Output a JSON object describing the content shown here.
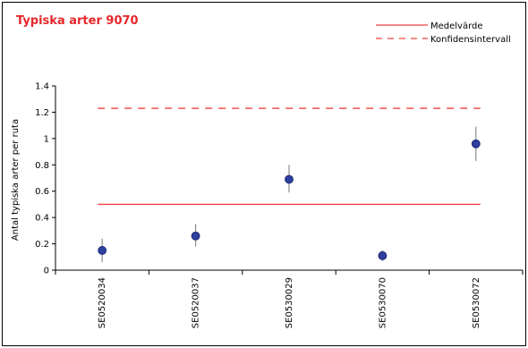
{
  "chart_data": {
    "type": "scatter",
    "title": "Typiska arter 9070",
    "xlabel": "",
    "ylabel": "Antal typiska arter per ruta",
    "ylim": [
      0,
      1.4
    ],
    "yticks": [
      0,
      0.2,
      0.4,
      0.6,
      0.8,
      1,
      1.2,
      1.4
    ],
    "ytick_labels": [
      "0",
      "0.2",
      "0.4",
      "0.6",
      "0.8",
      "1",
      "1.2",
      "1.4"
    ],
    "categories": [
      "SE0520034",
      "SE0520037",
      "SE0530029",
      "SE0530070",
      "SE0530072"
    ],
    "points": [
      {
        "value": 0.15,
        "err_low": 0.06,
        "err_high": 0.24
      },
      {
        "value": 0.26,
        "err_low": 0.18,
        "err_high": 0.35
      },
      {
        "value": 0.69,
        "err_low": 0.59,
        "err_high": 0.8
      },
      {
        "value": 0.11,
        "err_low": 0.07,
        "err_high": 0.15
      },
      {
        "value": 0.96,
        "err_low": 0.83,
        "err_high": 1.09
      }
    ],
    "mean": {
      "name": "Medelvärde",
      "value": 0.5
    },
    "confidence": {
      "name": "Konfidensintervall",
      "value": 1.23
    },
    "grid": false,
    "legend_position": "top-right",
    "colors": {
      "title": "#e8262b",
      "mean_line": "#f04040",
      "confidence_line": "#f04040",
      "marker_fill": "#2e3f9e",
      "marker_edge": "#14206a",
      "error_bar": "#8c8c8c",
      "axis": "#000000"
    }
  }
}
